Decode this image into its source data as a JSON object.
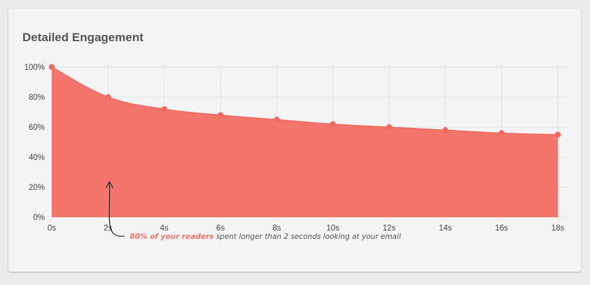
{
  "card": {
    "title": "Detailed Engagement"
  },
  "colors": {
    "area_fill": "#f2746a",
    "point_fill": "#f06a5f",
    "grid": "#e3e3e3",
    "highlight_text": "#f2746a"
  },
  "chart_data": {
    "type": "area",
    "title": "Detailed Engagement",
    "xlabel": "",
    "ylabel": "",
    "x": [
      "0s",
      "2s",
      "4s",
      "6s",
      "8s",
      "10s",
      "12s",
      "14s",
      "16s",
      "18s"
    ],
    "values": [
      100,
      80,
      72,
      68,
      65,
      62,
      60,
      58,
      56,
      55
    ],
    "ylim": [
      0,
      100
    ],
    "y_ticks": [
      "0%",
      "20%",
      "40%",
      "60%",
      "80%",
      "100%"
    ],
    "y_tick_values": [
      0,
      20,
      40,
      60,
      80,
      100
    ],
    "grid": true,
    "annotation": {
      "highlight": "80% of your readers",
      "text": " spent longer than 2 seconds looking at your email",
      "target_x_index": 1
    }
  }
}
